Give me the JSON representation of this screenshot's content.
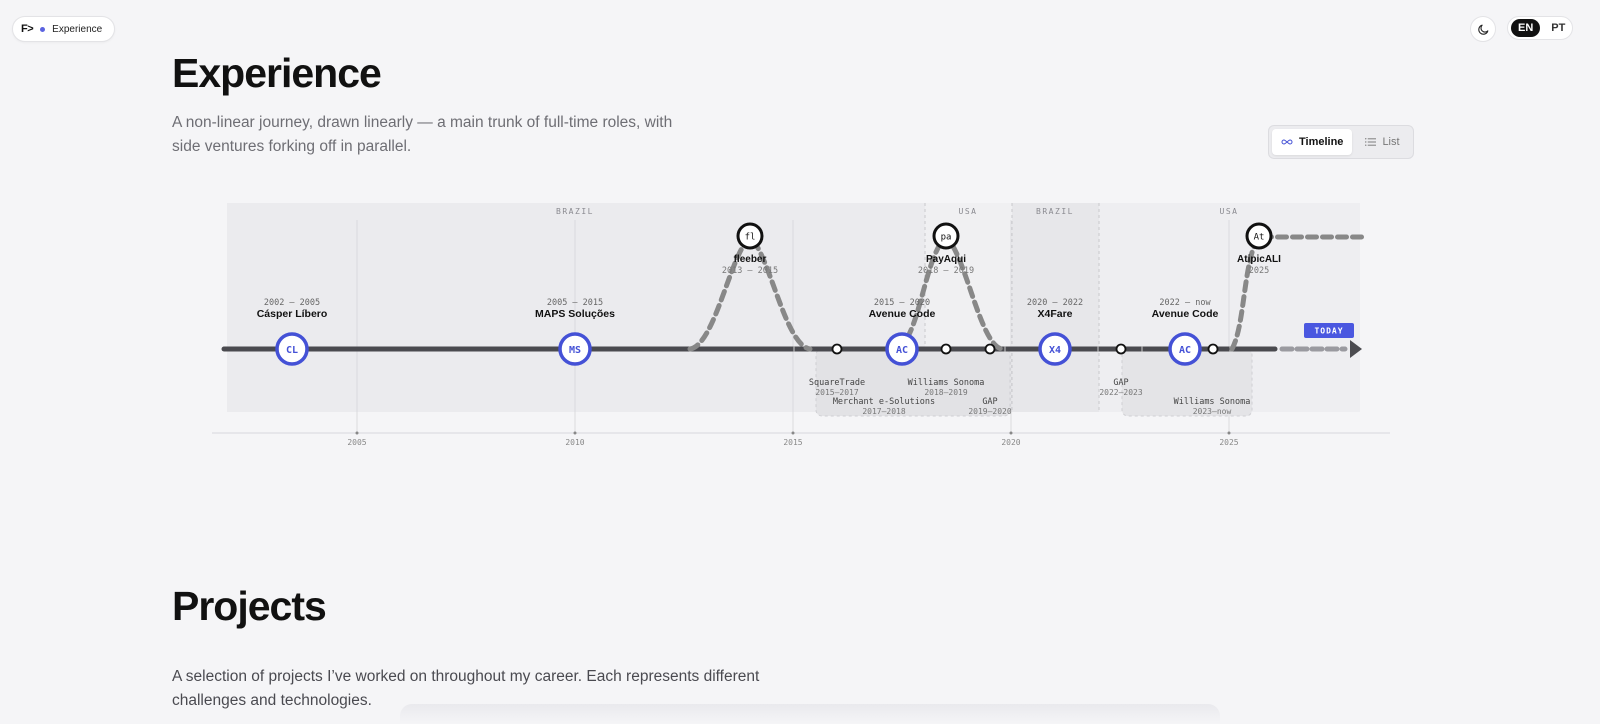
{
  "nav": {
    "logo": "F>",
    "section_label": "Experience",
    "languages": [
      {
        "code": "EN",
        "active": true
      },
      {
        "code": "PT",
        "active": false
      }
    ],
    "theme_icon": "moon-icon"
  },
  "experience": {
    "title": "Experience",
    "subtitle_line1": "A non-linear journey, drawn linearly — a main trunk of full-time roles, with",
    "subtitle_line2": "side ventures forking off in parallel.",
    "view_toggle": {
      "timeline_label": "Timeline",
      "timeline_icon": "infinity-icon",
      "list_label": "List",
      "list_icon": "list-icon",
      "selected": "Timeline"
    }
  },
  "timeline": {
    "axis_years": [
      "2005",
      "2010",
      "2015",
      "2020",
      "2025"
    ],
    "regions": [
      {
        "label": "BRAZIL",
        "from": 2002,
        "to": 2017.7
      },
      {
        "label": "USA",
        "from": 2017.7,
        "to": 2020
      },
      {
        "label": "BRAZIL",
        "from": 2020,
        "to": 2022
      },
      {
        "label": "USA",
        "from": 2022,
        "to": 2028.5
      }
    ],
    "main_roles": [
      {
        "abbr": "CL",
        "name": "Cásper Líbero",
        "period": "2002 – 2005",
        "at": 2003.5
      },
      {
        "abbr": "MS",
        "name": "MAPS Soluções",
        "period": "2005 – 2015",
        "at": 2010
      },
      {
        "abbr": "AC",
        "name": "Avenue Code",
        "period": "2015 – 2020",
        "at": 2017.5
      },
      {
        "abbr": "X4",
        "name": "X4Fare",
        "period": "2020 – 2022",
        "at": 2021
      },
      {
        "abbr": "AC",
        "name": "Avenue Code",
        "period": "2022 – now",
        "at": 2024
      }
    ],
    "side_ventures": [
      {
        "abbr": "fl",
        "name": "fleeber",
        "period": "2013 – 2015",
        "at": 2014
      },
      {
        "abbr": "pa",
        "name": "PayAqui",
        "period": "2018 – 2019",
        "at": 2018.5
      },
      {
        "abbr": "At",
        "name": "AtipicALI",
        "period": "2025",
        "at": 2025.7
      }
    ],
    "clients": [
      {
        "name": "SquareTrade",
        "period": "2015–2017"
      },
      {
        "name": "Merchant e-Solutions",
        "period": "2017–2018"
      },
      {
        "name": "Williams Sonoma",
        "period": "2018–2019"
      },
      {
        "name": "GAP",
        "period": "2019–2020"
      },
      {
        "name": "GAP",
        "period": "2022–2023"
      },
      {
        "name": "Williams Sonoma",
        "period": "2023–now"
      }
    ],
    "today_label": "TODAY",
    "accent_color": "#4451d6",
    "today_color": "#4a57e0"
  },
  "projects": {
    "title": "Projects",
    "subtitle_line1": "A selection of projects I’ve worked on throughout my career. Each represents different",
    "subtitle_line2": "challenges and technologies."
  }
}
